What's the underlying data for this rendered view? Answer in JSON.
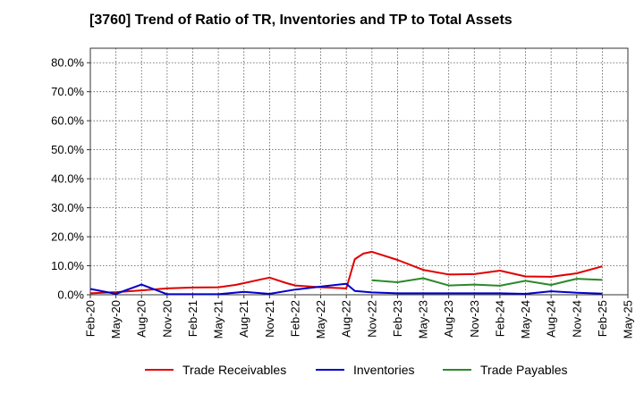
{
  "title": "[3760]  Trend of Ratio of TR, Inventories and TP to Total Assets",
  "chart_data": {
    "type": "line",
    "title": "[3760]  Trend of Ratio of TR, Inventories and TP to Total Assets",
    "xlabel": "",
    "ylabel": "",
    "ylim": [
      0,
      85
    ],
    "y_ticks": [
      "0.0%",
      "10.0%",
      "20.0%",
      "30.0%",
      "40.0%",
      "50.0%",
      "60.0%",
      "70.0%",
      "80.0%"
    ],
    "x_ticks": [
      "Feb-20",
      "May-20",
      "Aug-20",
      "Nov-20",
      "Feb-21",
      "May-21",
      "Aug-21",
      "Nov-21",
      "Feb-22",
      "May-22",
      "Aug-22",
      "Nov-22",
      "Feb-23",
      "May-23",
      "Aug-23",
      "Nov-23",
      "Feb-24",
      "May-24",
      "Aug-24",
      "Nov-24",
      "Feb-25",
      "May-25"
    ],
    "grid": true,
    "legend_position": "bottom",
    "series": [
      {
        "name": "Trade Receivables",
        "color": "#e00000",
        "x": [
          "Feb-20",
          "May-20",
          "Aug-20",
          "Nov-20",
          "Feb-21",
          "May-21",
          "Jul-21",
          "Aug-21",
          "Oct-21",
          "Nov-21",
          "Jan-22",
          "Feb-22",
          "May-22",
          "Aug-22",
          "Sep-22",
          "Oct-22",
          "Nov-22",
          "Feb-23",
          "May-23",
          "Aug-23",
          "Nov-23",
          "Feb-24",
          "May-24",
          "Aug-24",
          "Nov-24",
          "Feb-25"
        ],
        "values": [
          0.5,
          0.9,
          1.5,
          2.2,
          2.5,
          2.6,
          3.4,
          4.0,
          5.3,
          5.9,
          4.0,
          3.2,
          2.6,
          2.2,
          12.3,
          14.2,
          14.8,
          12.0,
          8.6,
          7.0,
          7.1,
          8.3,
          6.3,
          6.2,
          7.4,
          9.8
        ]
      },
      {
        "name": "Inventories",
        "color": "#0000cc",
        "x": [
          "Feb-20",
          "May-20",
          "Aug-20",
          "Nov-20",
          "Feb-21",
          "May-21",
          "Aug-21",
          "Nov-21",
          "Feb-22",
          "May-22",
          "Aug-22",
          "Sep-22",
          "Nov-22",
          "Feb-23",
          "May-23",
          "Aug-23",
          "Nov-23",
          "Feb-24",
          "May-24",
          "Aug-24",
          "Nov-24",
          "Feb-25"
        ],
        "values": [
          2.0,
          0.3,
          3.5,
          0.2,
          0.2,
          0.2,
          1.0,
          0.3,
          1.8,
          2.8,
          3.8,
          1.3,
          0.8,
          0.5,
          0.5,
          0.5,
          0.5,
          0.5,
          0.3,
          1.2,
          0.7,
          0.4
        ]
      },
      {
        "name": "Trade Payables",
        "color": "#2a8a2a",
        "x": [
          "Nov-22",
          "Feb-23",
          "May-23",
          "Aug-23",
          "Nov-23",
          "Feb-24",
          "May-24",
          "Aug-24",
          "Nov-24",
          "Feb-25"
        ],
        "values": [
          5.0,
          4.3,
          5.7,
          3.2,
          3.5,
          3.1,
          4.8,
          3.4,
          5.5,
          5.1
        ]
      }
    ]
  }
}
